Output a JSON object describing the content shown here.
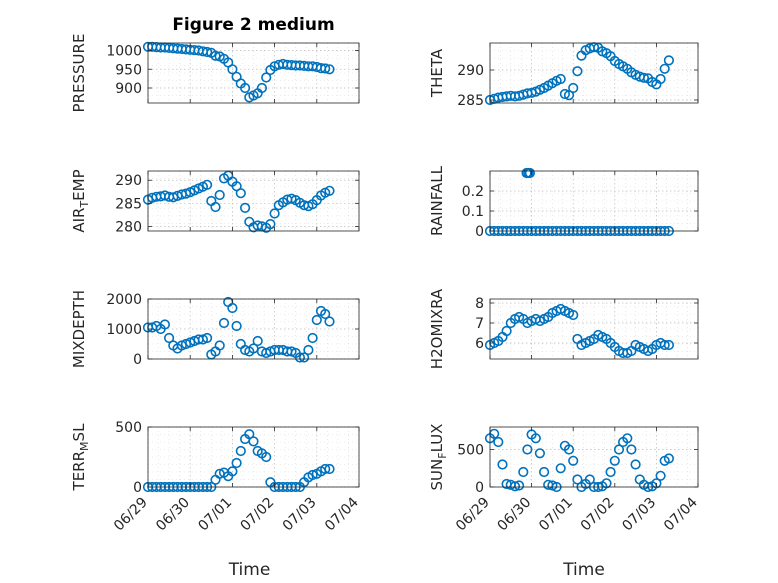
{
  "figure": {
    "title": "Figure 2 medium",
    "xlabel": "Time"
  },
  "colors": {
    "marker": "#0072BD",
    "axis": "#262626",
    "grid": "#bfbfbf"
  },
  "chart_data": [
    {
      "id": "pressure",
      "type": "scatter",
      "ylabel": "PRESSURE",
      "xlim": [
        0,
        5
      ],
      "ylim": [
        860,
        1020
      ],
      "yticks": [
        900,
        950,
        1000
      ],
      "yticklabels": [
        "900",
        "950",
        "1000"
      ],
      "x": [
        0.0,
        0.1,
        0.2,
        0.3,
        0.4,
        0.5,
        0.6,
        0.7,
        0.8,
        0.9,
        1.0,
        1.1,
        1.2,
        1.3,
        1.4,
        1.5,
        1.6,
        1.7,
        1.8,
        1.9,
        2.0,
        2.1,
        2.2,
        2.3,
        2.4,
        2.5,
        2.6,
        2.7,
        2.8,
        2.9,
        3.0,
        3.1,
        3.2,
        3.3,
        3.4,
        3.5,
        3.6,
        3.7,
        3.8,
        3.9,
        4.0,
        4.1,
        4.2,
        4.3
      ],
      "y": [
        1010,
        1010,
        1009,
        1008,
        1008,
        1007,
        1006,
        1005,
        1004,
        1003,
        1002,
        1001,
        1000,
        998,
        996,
        994,
        986,
        984,
        978,
        968,
        950,
        930,
        912,
        900,
        875,
        880,
        886,
        900,
        928,
        948,
        958,
        962,
        964,
        962,
        961,
        960,
        960,
        959,
        958,
        958,
        956,
        953,
        952,
        950
      ]
    },
    {
      "id": "theta",
      "type": "scatter",
      "ylabel": "THETA",
      "xlim": [
        0,
        5
      ],
      "ylim": [
        284.5,
        294.5
      ],
      "yticks": [
        285,
        290
      ],
      "yticklabels": [
        "285",
        "290"
      ],
      "x": [
        0.0,
        0.1,
        0.2,
        0.3,
        0.4,
        0.5,
        0.6,
        0.7,
        0.8,
        0.9,
        1.0,
        1.1,
        1.2,
        1.3,
        1.4,
        1.5,
        1.6,
        1.7,
        1.8,
        1.9,
        2.0,
        2.1,
        2.2,
        2.3,
        2.4,
        2.5,
        2.6,
        2.7,
        2.8,
        2.9,
        3.0,
        3.1,
        3.2,
        3.3,
        3.4,
        3.5,
        3.6,
        3.7,
        3.8,
        3.9,
        4.0,
        4.1,
        4.2,
        4.3
      ],
      "y": [
        285.0,
        285.2,
        285.4,
        285.5,
        285.6,
        285.7,
        285.6,
        285.7,
        285.9,
        286.1,
        286.2,
        286.4,
        286.7,
        287.0,
        287.4,
        287.8,
        288.2,
        288.5,
        286.0,
        285.8,
        287.0,
        289.8,
        292.4,
        293.3,
        293.6,
        293.8,
        293.7,
        293.1,
        292.8,
        292.3,
        291.5,
        291.0,
        290.6,
        290.2,
        289.6,
        289.2,
        288.9,
        288.7,
        288.6,
        288.0,
        287.6,
        288.5,
        290.2,
        291.6
      ]
    },
    {
      "id": "air_temp",
      "type": "scatter",
      "ylabel": "AIR_TEMP",
      "ylabel_base": "AIR",
      "ylabel_sub": "T",
      "ylabel_rest": "EMP",
      "xlim": [
        0,
        5
      ],
      "ylim": [
        279,
        292
      ],
      "yticks": [
        280,
        285,
        290
      ],
      "yticklabels": [
        "280",
        "285",
        "290"
      ],
      "x": [
        0.0,
        0.1,
        0.2,
        0.3,
        0.4,
        0.5,
        0.6,
        0.7,
        0.8,
        0.9,
        1.0,
        1.1,
        1.2,
        1.3,
        1.4,
        1.5,
        1.6,
        1.7,
        1.8,
        1.9,
        2.0,
        2.1,
        2.2,
        2.3,
        2.4,
        2.5,
        2.6,
        2.7,
        2.8,
        2.9,
        3.0,
        3.1,
        3.2,
        3.3,
        3.4,
        3.5,
        3.6,
        3.7,
        3.8,
        3.9,
        4.0,
        4.1,
        4.2,
        4.3
      ],
      "y": [
        285.8,
        286.2,
        286.4,
        286.5,
        286.7,
        286.4,
        286.3,
        286.6,
        286.9,
        287.1,
        287.4,
        287.8,
        288.2,
        288.6,
        289.0,
        285.5,
        284.2,
        286.8,
        290.4,
        291.0,
        289.7,
        288.7,
        287.2,
        284.0,
        281.0,
        279.8,
        280.2,
        280.0,
        279.7,
        280.5,
        282.8,
        284.6,
        285.2,
        285.8,
        286.0,
        285.7,
        285.1,
        284.6,
        284.4,
        284.8,
        285.7,
        286.7,
        287.3,
        287.7
      ]
    },
    {
      "id": "rainfall",
      "type": "scatter",
      "ylabel": "RAINFALL",
      "xlim": [
        0,
        5
      ],
      "ylim": [
        0,
        0.3
      ],
      "yticks": [
        0,
        0.1,
        0.2
      ],
      "yticklabels": [
        "0",
        "0.1",
        "0.2"
      ],
      "x": [
        0.0,
        0.1,
        0.2,
        0.3,
        0.4,
        0.5,
        0.6,
        0.7,
        0.8,
        0.9,
        1.0,
        1.1,
        1.2,
        1.3,
        1.4,
        1.5,
        1.6,
        1.7,
        1.8,
        1.9,
        2.0,
        2.1,
        2.2,
        2.3,
        2.4,
        2.5,
        2.6,
        2.7,
        2.8,
        2.9,
        3.0,
        3.1,
        3.2,
        3.3,
        3.4,
        3.5,
        3.6,
        3.7,
        3.8,
        3.9,
        4.0,
        4.1,
        4.2,
        4.3,
        0.88,
        0.92,
        0.96
      ],
      "y": [
        0,
        0,
        0,
        0,
        0,
        0,
        0,
        0,
        0,
        0,
        0,
        0,
        0,
        0,
        0,
        0,
        0,
        0,
        0,
        0,
        0,
        0,
        0,
        0,
        0,
        0,
        0,
        0,
        0,
        0,
        0,
        0,
        0,
        0,
        0,
        0,
        0,
        0,
        0,
        0,
        0,
        0,
        0,
        0,
        0.29,
        0.29,
        0.29
      ]
    },
    {
      "id": "mixdepth",
      "type": "scatter",
      "ylabel": "MIXDEPTH",
      "xlim": [
        0,
        5
      ],
      "ylim": [
        0,
        2000
      ],
      "yticks": [
        0,
        1000,
        2000
      ],
      "yticklabels": [
        "0",
        "1000",
        "2000"
      ],
      "x": [
        0.0,
        0.1,
        0.2,
        0.3,
        0.4,
        0.5,
        0.6,
        0.7,
        0.8,
        0.9,
        1.0,
        1.1,
        1.2,
        1.3,
        1.4,
        1.5,
        1.6,
        1.7,
        1.8,
        1.9,
        2.0,
        2.1,
        2.2,
        2.3,
        2.4,
        2.5,
        2.6,
        2.7,
        2.8,
        2.9,
        3.0,
        3.1,
        3.2,
        3.3,
        3.4,
        3.5,
        3.6,
        3.7,
        3.8,
        3.9,
        4.0,
        4.1,
        4.2,
        4.3
      ],
      "y": [
        1050,
        1050,
        1100,
        1000,
        1150,
        700,
        450,
        350,
        450,
        500,
        550,
        600,
        650,
        650,
        700,
        150,
        250,
        450,
        1200,
        1900,
        1700,
        1100,
        500,
        300,
        250,
        350,
        600,
        250,
        200,
        250,
        300,
        300,
        300,
        250,
        250,
        200,
        50,
        50,
        300,
        700,
        1300,
        1600,
        1500,
        1250
      ]
    },
    {
      "id": "h2omixra",
      "type": "scatter",
      "ylabel": "H2OMIXRA",
      "xlim": [
        0,
        5
      ],
      "ylim": [
        5.2,
        8.2
      ],
      "yticks": [
        6,
        7,
        8
      ],
      "yticklabels": [
        "6",
        "7",
        "8"
      ],
      "x": [
        0.0,
        0.1,
        0.2,
        0.3,
        0.4,
        0.5,
        0.6,
        0.7,
        0.8,
        0.9,
        1.0,
        1.1,
        1.2,
        1.3,
        1.4,
        1.5,
        1.6,
        1.7,
        1.8,
        1.9,
        2.0,
        2.1,
        2.2,
        2.3,
        2.4,
        2.5,
        2.6,
        2.7,
        2.8,
        2.9,
        3.0,
        3.1,
        3.2,
        3.3,
        3.4,
        3.5,
        3.6,
        3.7,
        3.8,
        3.9,
        4.0,
        4.1,
        4.2,
        4.3
      ],
      "y": [
        5.9,
        6.0,
        6.1,
        6.3,
        6.6,
        7.0,
        7.2,
        7.3,
        7.2,
        7.0,
        7.1,
        7.2,
        7.1,
        7.2,
        7.3,
        7.5,
        7.6,
        7.7,
        7.6,
        7.5,
        7.4,
        6.2,
        5.9,
        6.0,
        6.1,
        6.2,
        6.4,
        6.3,
        6.2,
        6.0,
        5.8,
        5.6,
        5.5,
        5.5,
        5.6,
        5.9,
        5.8,
        5.7,
        5.6,
        5.7,
        5.9,
        6.0,
        5.9,
        5.9
      ]
    },
    {
      "id": "terr_msl",
      "type": "scatter",
      "ylabel": "TERR_MSL",
      "ylabel_base": "TERR",
      "ylabel_sub": "M",
      "ylabel_rest": "SL",
      "xlim": [
        0,
        5
      ],
      "ylim": [
        0,
        500
      ],
      "yticks": [
        0,
        500
      ],
      "yticklabels": [
        "0",
        "500"
      ],
      "x": [
        0.0,
        0.1,
        0.2,
        0.3,
        0.4,
        0.5,
        0.6,
        0.7,
        0.8,
        0.9,
        1.0,
        1.1,
        1.2,
        1.3,
        1.4,
        1.5,
        1.6,
        1.7,
        1.8,
        1.9,
        2.0,
        2.1,
        2.2,
        2.3,
        2.4,
        2.5,
        2.6,
        2.7,
        2.8,
        2.9,
        3.0,
        3.1,
        3.2,
        3.3,
        3.4,
        3.5,
        3.6,
        3.7,
        3.8,
        3.9,
        4.0,
        4.1,
        4.2,
        4.3
      ],
      "y": [
        0,
        0,
        0,
        0,
        0,
        0,
        0,
        0,
        0,
        0,
        0,
        0,
        0,
        0,
        0,
        0,
        60,
        110,
        120,
        90,
        130,
        200,
        300,
        400,
        440,
        380,
        300,
        280,
        250,
        40,
        0,
        0,
        0,
        0,
        0,
        0,
        0,
        40,
        80,
        100,
        110,
        130,
        150,
        150
      ]
    },
    {
      "id": "sun_flux",
      "type": "scatter",
      "ylabel": "SUN_FLUX",
      "ylabel_base": "SUN",
      "ylabel_sub": "F",
      "ylabel_rest": "LUX",
      "xlim": [
        0,
        5
      ],
      "ylim": [
        0,
        800
      ],
      "yticks": [
        0,
        500
      ],
      "yticklabels": [
        "0",
        "500"
      ],
      "x": [
        0.0,
        0.1,
        0.2,
        0.3,
        0.4,
        0.5,
        0.6,
        0.7,
        0.8,
        0.9,
        1.0,
        1.1,
        1.2,
        1.3,
        1.4,
        1.5,
        1.6,
        1.7,
        1.8,
        1.9,
        2.0,
        2.1,
        2.2,
        2.3,
        2.4,
        2.5,
        2.6,
        2.7,
        2.8,
        2.9,
        3.0,
        3.1,
        3.2,
        3.3,
        3.4,
        3.5,
        3.6,
        3.7,
        3.8,
        3.9,
        4.0,
        4.1,
        4.2,
        4.3
      ],
      "y": [
        650,
        710,
        600,
        300,
        40,
        30,
        10,
        20,
        200,
        500,
        700,
        650,
        450,
        200,
        30,
        20,
        0,
        250,
        550,
        500,
        350,
        100,
        0,
        40,
        100,
        0,
        0,
        10,
        50,
        200,
        350,
        500,
        600,
        650,
        500,
        300,
        100,
        30,
        0,
        10,
        50,
        150,
        350,
        380
      ]
    }
  ],
  "shared_x": {
    "xticks": [
      0,
      1,
      2,
      3,
      4,
      5
    ],
    "xticklabels": [
      "06/29",
      "06/30",
      "07/01",
      "07/02",
      "07/03",
      "07/04"
    ]
  }
}
